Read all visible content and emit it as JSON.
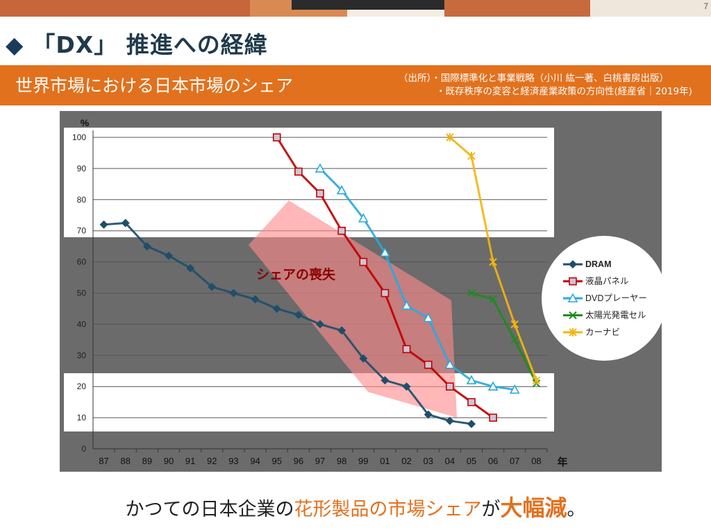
{
  "page_number": "7",
  "title": {
    "mark": "◆",
    "text": "「DX」 推進への経緯"
  },
  "banner": {
    "title": "世界市場における日本市場のシェア",
    "source_lines": [
      "（出所）・国際標準化と事業戦略（小川 紘一著、白桃書房出版）",
      "　　　　・既存秩序の変容と経済産業政策の方向性(経産省｜2019年)"
    ]
  },
  "bottom": {
    "part1": "かつての日本企業の",
    "part2": "花形製品の市場シェア",
    "part3": "が",
    "part4": "大幅減",
    "part5": "。"
  },
  "colors": {
    "orange": "#e2711d",
    "dram": "#1f4e6b",
    "lcd": "#c00000",
    "dvd": "#27a9e1",
    "solar": "#1e8b1e",
    "carnavi": "#f2b50f"
  },
  "chart_data": {
    "type": "line",
    "ylabel": "%",
    "xlabel": "年",
    "ylim": [
      0,
      100
    ],
    "yticks": [
      0,
      10,
      20,
      30,
      40,
      50,
      60,
      70,
      80,
      90,
      100
    ],
    "categories": [
      "87",
      "88",
      "89",
      "90",
      "91",
      "92",
      "93",
      "94",
      "95",
      "96",
      "97",
      "98",
      "99",
      "01",
      "02",
      "03",
      "04",
      "05",
      "06",
      "07",
      "08"
    ],
    "grid": true,
    "legend_position": "right",
    "annotation": "シェアの喪失",
    "series": [
      {
        "name": "DRAM",
        "marker": "diamond",
        "color": "#1f4e6b",
        "values": [
          72,
          72.5,
          65,
          62,
          58,
          52,
          50,
          48,
          45,
          43,
          40,
          38,
          29,
          22,
          20,
          11,
          9,
          8,
          null,
          null,
          null
        ]
      },
      {
        "name": "液晶パネル",
        "marker": "square",
        "color": "#c00000",
        "values": [
          null,
          null,
          null,
          null,
          null,
          null,
          null,
          null,
          100,
          89,
          82,
          70,
          60,
          50,
          32,
          27,
          20,
          15,
          10,
          null,
          null
        ]
      },
      {
        "name": "DVDプレーヤー",
        "marker": "triangle",
        "color": "#27a9e1",
        "values": [
          null,
          null,
          null,
          null,
          null,
          null,
          null,
          null,
          null,
          null,
          90,
          83,
          74,
          63,
          46,
          42,
          27,
          22,
          20,
          19,
          null
        ]
      },
      {
        "name": "太陽光発電セル",
        "marker": "x",
        "color": "#1e8b1e",
        "values": [
          null,
          null,
          null,
          null,
          null,
          null,
          null,
          null,
          null,
          null,
          null,
          null,
          null,
          null,
          null,
          null,
          null,
          50,
          48,
          35,
          21
        ]
      },
      {
        "name": "カーナビ",
        "marker": "asterisk",
        "color": "#f2b50f",
        "values": [
          null,
          null,
          null,
          null,
          null,
          null,
          null,
          null,
          null,
          null,
          null,
          null,
          null,
          null,
          null,
          null,
          100,
          94,
          60,
          40,
          22
        ]
      }
    ]
  }
}
